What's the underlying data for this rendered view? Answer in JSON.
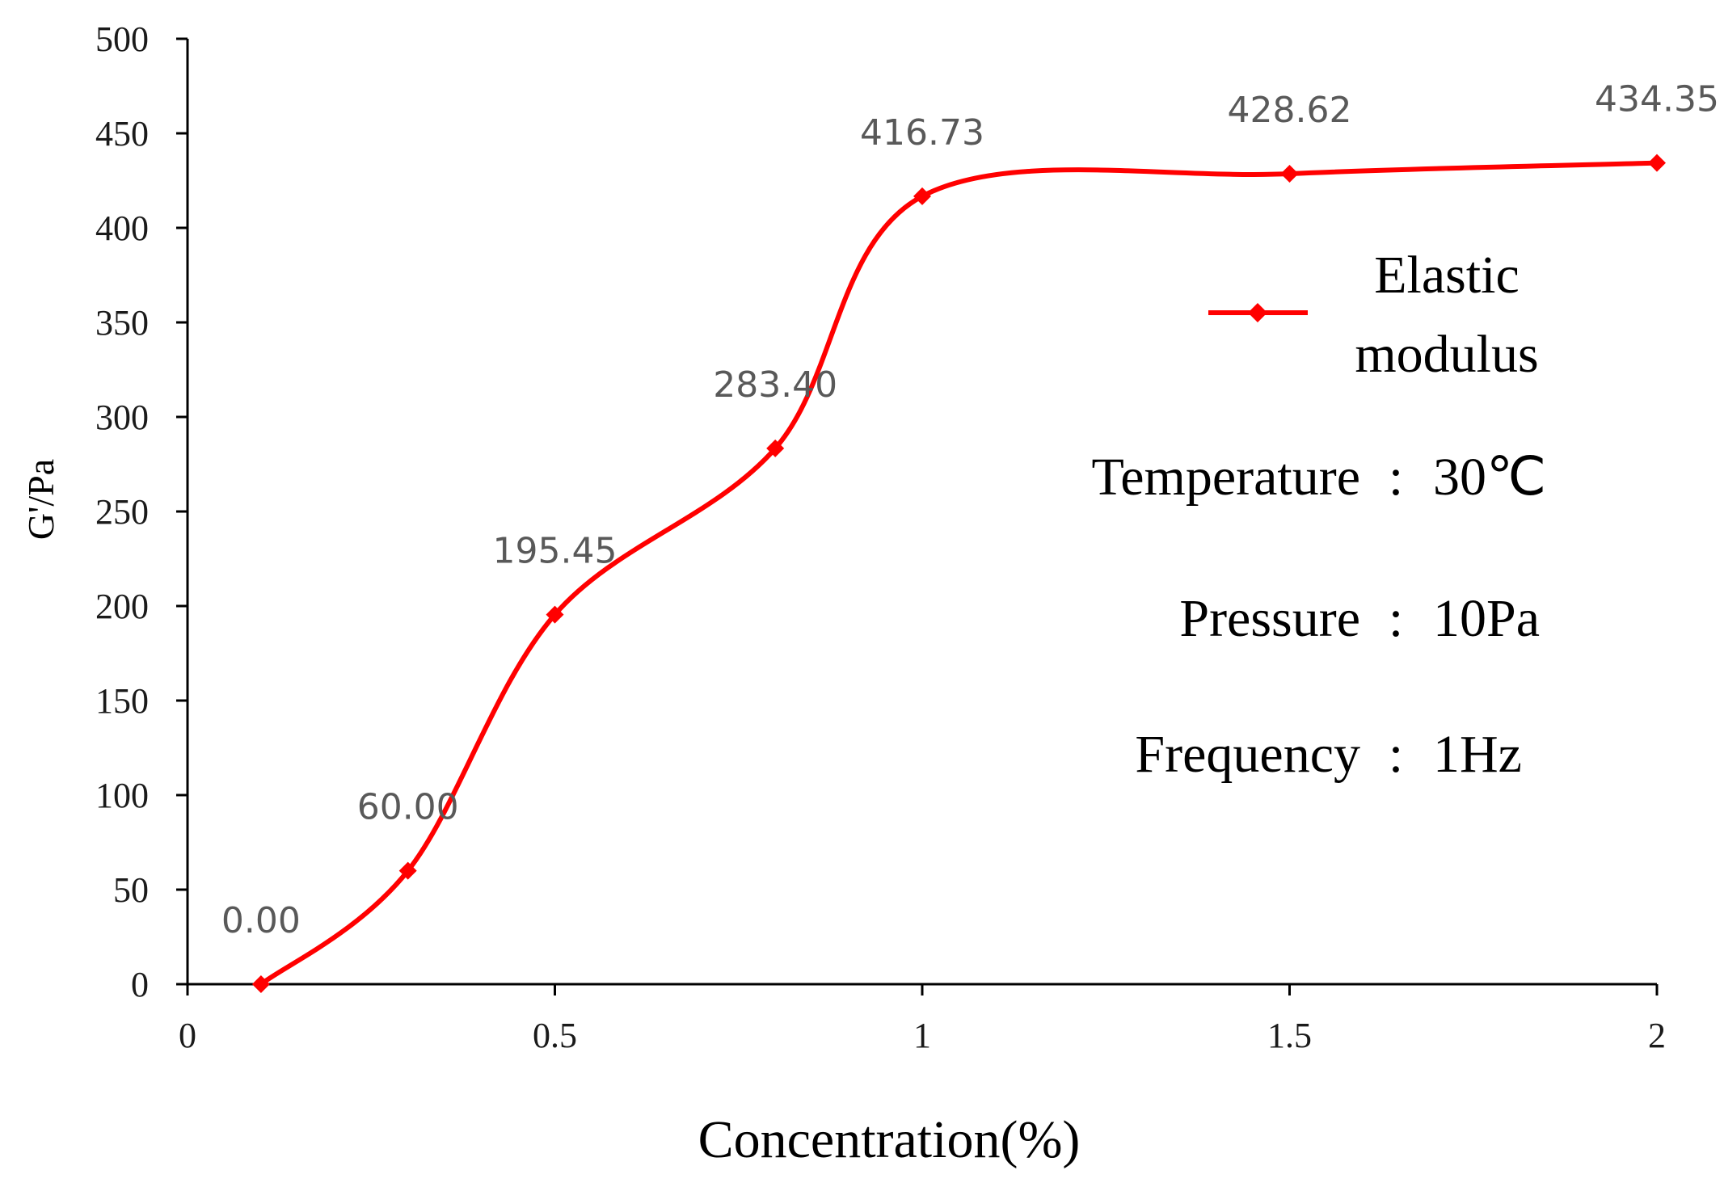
{
  "chart_data": {
    "type": "line",
    "title": "",
    "xlabel": "Concentration(%)",
    "ylabel": "G'/Pa",
    "xlim": [
      0,
      2
    ],
    "ylim": [
      0,
      500
    ],
    "xticks": [
      "0",
      "0.5",
      "1",
      "1.5",
      "2"
    ],
    "yticks": [
      "0",
      "50",
      "100",
      "150",
      "200",
      "250",
      "300",
      "350",
      "400",
      "450",
      "500"
    ],
    "grid": false,
    "legend_position": "right",
    "series": [
      {
        "name": "Elastic modulus",
        "color": "#ff0000",
        "x": [
          0.1,
          0.3,
          0.5,
          0.8,
          1.0,
          1.5,
          2.0
        ],
        "values": [
          0.0,
          60.0,
          195.45,
          283.4,
          416.73,
          428.62,
          434.35
        ],
        "labels": [
          "0.00",
          "60.00",
          "195.45",
          "283.40",
          "416.73",
          "428.62",
          "434.35"
        ]
      }
    ],
    "legend": {
      "line1": "Elastic",
      "line2": "modulus"
    },
    "annotations": [
      {
        "label": "Temperature",
        "value": "30℃"
      },
      {
        "label": "Pressure",
        "value": "10Pa"
      },
      {
        "label": "Frequency",
        "value": "1Hz"
      }
    ]
  }
}
